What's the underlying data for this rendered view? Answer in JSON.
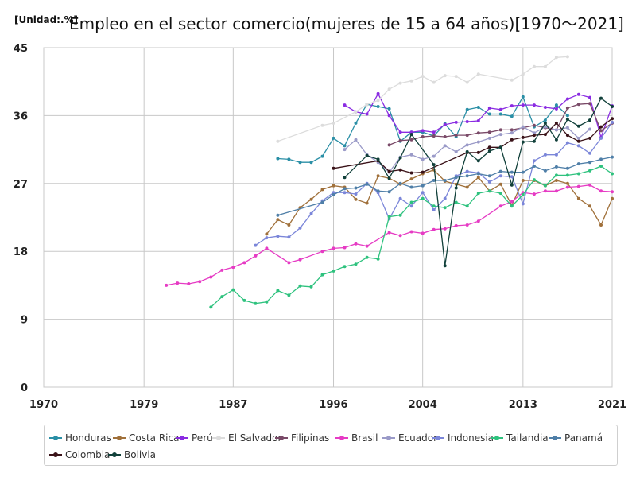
{
  "chart_data": {
    "type": "line",
    "unit_label": "[Unidad:.%]",
    "title": "Empleo en el sector comercio(mujeres de 15 a 64 años)[1970～2021]",
    "xlim": [
      1970,
      2021
    ],
    "ylim": [
      0,
      45
    ],
    "x_ticks": [
      "1970",
      "1979",
      "1987",
      "1996",
      "2004",
      "2013",
      "2021"
    ],
    "y_ticks": [
      "0",
      "9",
      "18",
      "27",
      "36",
      "45"
    ],
    "grid": true,
    "legend_position": "bottom",
    "series": [
      {
        "name": "Honduras",
        "color": "#2a8fa6",
        "x": [
          1991,
          1992,
          1993,
          1994,
          1995,
          1996,
          1997,
          1998,
          1999,
          2000,
          2001,
          2002,
          2003,
          2004,
          2005,
          2006,
          2007,
          2008,
          2009,
          2010,
          2011,
          2012,
          2013,
          2014,
          2015,
          2016,
          2017
        ],
        "y": [
          30.3,
          30.2,
          29.8,
          29.8,
          30.6,
          33.0,
          32.0,
          35.0,
          37.5,
          37.2,
          36.9,
          32.6,
          33.8,
          33.8,
          33.3,
          34.9,
          33.2,
          36.8,
          37.1,
          36.2,
          36.2,
          35.9,
          38.5,
          34.5,
          35.4,
          37.4,
          36.0
        ]
      },
      {
        "name": "Costa Rica",
        "color": "#a0703a",
        "x": [
          1990,
          1991,
          1992,
          1993,
          1994,
          1995,
          1996,
          1997,
          1998,
          1999,
          2000,
          2001,
          2002,
          2003,
          2004,
          2005,
          2006,
          2007,
          2008,
          2009,
          2010,
          2011,
          2012,
          2013,
          2014,
          2015,
          2016,
          2017,
          2018,
          2019,
          2020,
          2021
        ],
        "y": [
          20.3,
          22.2,
          21.5,
          23.8,
          24.9,
          26.2,
          26.7,
          26.5,
          24.9,
          24.4,
          28.0,
          27.7,
          26.9,
          27.6,
          28.3,
          28.8,
          27.3,
          26.9,
          26.5,
          27.8,
          26.0,
          26.9,
          24.1,
          27.4,
          27.4,
          26.7,
          27.4,
          27.0,
          25.0,
          24.0,
          21.5,
          25.0
        ]
      },
      {
        "name": "Perú",
        "color": "#8a2be2",
        "x": [
          1997,
          1998,
          1999,
          2000,
          2001,
          2002,
          2003,
          2004,
          2005,
          2006,
          2007,
          2008,
          2009,
          2010,
          2011,
          2012,
          2013,
          2014,
          2015,
          2016,
          2017,
          2018,
          2019,
          2020,
          2021
        ],
        "y": [
          37.4,
          36.5,
          36.2,
          38.9,
          36.0,
          33.8,
          33.8,
          34.0,
          33.8,
          34.8,
          35.1,
          35.2,
          35.3,
          37.0,
          36.8,
          37.3,
          37.4,
          37.4,
          37.1,
          36.9,
          38.2,
          38.8,
          38.4,
          33.1,
          37.3
        ]
      },
      {
        "name": "El Salvador",
        "color": "#dcdcdc",
        "x": [
          1991,
          1995,
          1996,
          1998,
          1999,
          2000,
          2001,
          2002,
          2003,
          2004,
          2005,
          2006,
          2007,
          2008,
          2009,
          2012,
          2013,
          2014,
          2015,
          2016,
          2017
        ],
        "y": [
          32.6,
          34.7,
          35.0,
          36.5,
          37.5,
          38.0,
          39.5,
          40.3,
          40.6,
          41.2,
          40.4,
          41.3,
          41.2,
          40.4,
          41.5,
          40.7,
          41.5,
          42.5,
          42.5,
          43.7,
          43.8
        ]
      },
      {
        "name": "Filipinas",
        "color": "#7a4a68",
        "x": [
          2001,
          2002,
          2003,
          2004,
          2005,
          2006,
          2007,
          2008,
          2009,
          2010,
          2011,
          2012,
          2013,
          2014,
          2015,
          2016,
          2017,
          2018,
          2019,
          2020,
          2021
        ],
        "y": [
          32.1,
          32.7,
          32.8,
          33.2,
          33.3,
          33.2,
          33.4,
          33.4,
          33.7,
          33.8,
          34.1,
          34.1,
          34.4,
          34.7,
          34.4,
          34.1,
          37.0,
          37.5,
          37.6,
          34.0,
          35.0
        ]
      },
      {
        "name": "Brasil",
        "color": "#e63bc4",
        "x": [
          1981,
          1982,
          1983,
          1984,
          1985,
          1986,
          1987,
          1988,
          1989,
          1990,
          1992,
          1993,
          1995,
          1996,
          1997,
          1998,
          1999,
          2001,
          2002,
          2003,
          2004,
          2005,
          2006,
          2007,
          2008,
          2009,
          2011,
          2012,
          2013,
          2014,
          2015,
          2016,
          2017,
          2018,
          2019,
          2020,
          2021
        ],
        "y": [
          13.5,
          13.8,
          13.7,
          14.0,
          14.6,
          15.5,
          15.9,
          16.5,
          17.4,
          18.4,
          16.5,
          16.9,
          18.0,
          18.4,
          18.5,
          19.0,
          18.7,
          20.5,
          20.1,
          20.6,
          20.4,
          20.9,
          21.0,
          21.4,
          21.5,
          22.0,
          24.0,
          24.6,
          25.8,
          25.6,
          26.0,
          26.0,
          26.5,
          26.6,
          26.8,
          26.0,
          25.9
        ]
      },
      {
        "name": "Ecuador",
        "color": "#9a9ac8",
        "x": [
          1997,
          1998,
          1999,
          2000,
          2001,
          2002,
          2003,
          2004,
          2005,
          2006,
          2007,
          2008,
          2009,
          2010,
          2011,
          2012,
          2013,
          2014,
          2015,
          2016,
          2017,
          2018,
          2019
        ],
        "y": [
          31.5,
          32.8,
          30.8,
          29.8,
          28.5,
          30.5,
          30.8,
          30.2,
          30.6,
          32.0,
          31.2,
          32.1,
          32.5,
          33.0,
          33.5,
          33.7,
          34.5,
          33.7,
          34.5,
          34.1,
          34.4,
          33.0,
          34.2
        ]
      },
      {
        "name": "Indonesia",
        "color": "#7b86d9",
        "x": [
          1989,
          1990,
          1991,
          1992,
          1993,
          1994,
          1995,
          1996,
          1997,
          1998,
          1999,
          2000,
          2001,
          2002,
          2003,
          2004,
          2005,
          2006,
          2007,
          2008,
          2009,
          2010,
          2011,
          2012,
          2013,
          2014,
          2015,
          2016,
          2017,
          2018,
          2019,
          2020,
          2021
        ],
        "y": [
          18.8,
          19.8,
          20.0,
          19.9,
          21.1,
          23.0,
          24.7,
          25.8,
          25.8,
          25.6,
          27.0,
          25.8,
          22.3,
          25.0,
          24.0,
          25.8,
          23.5,
          25.0,
          28.0,
          28.6,
          28.4,
          27.2,
          28.0,
          27.9,
          24.3,
          30.0,
          30.8,
          30.8,
          32.4,
          32.0,
          31.0,
          33.0,
          35.1
        ]
      },
      {
        "name": "Tailandia",
        "color": "#2ec27e",
        "x": [
          1985,
          1986,
          1987,
          1988,
          1989,
          1990,
          1991,
          1992,
          1993,
          1994,
          1995,
          1996,
          1997,
          1998,
          1999,
          2000,
          2001,
          2002,
          2003,
          2004,
          2005,
          2006,
          2007,
          2008,
          2009,
          2010,
          2011,
          2012,
          2013,
          2014,
          2015,
          2016,
          2017,
          2018,
          2019,
          2020,
          2021
        ],
        "y": [
          10.6,
          12.0,
          12.9,
          11.5,
          11.1,
          11.3,
          12.8,
          12.2,
          13.4,
          13.3,
          14.9,
          15.4,
          16.0,
          16.3,
          17.2,
          17.0,
          22.6,
          22.8,
          24.5,
          25.0,
          24.0,
          23.8,
          24.5,
          24.0,
          25.7,
          26.0,
          25.7,
          24.0,
          25.5,
          27.5,
          26.7,
          28.1,
          28.1,
          28.3,
          28.7,
          29.3,
          28.3
        ]
      },
      {
        "name": "Panamá",
        "color": "#4f7fa8",
        "x": [
          1991,
          1995,
          1996,
          1997,
          1998,
          1999,
          2000,
          2001,
          2002,
          2003,
          2004,
          2005,
          2006,
          2007,
          2008,
          2009,
          2010,
          2011,
          2012,
          2013,
          2014,
          2015,
          2016,
          2017,
          2018,
          2019,
          2020,
          2021
        ],
        "y": [
          22.8,
          24.5,
          25.5,
          26.3,
          26.4,
          26.9,
          26.0,
          25.9,
          27.0,
          26.5,
          26.7,
          27.4,
          27.4,
          27.8,
          28.0,
          28.3,
          28.0,
          28.6,
          28.5,
          28.5,
          29.3,
          28.7,
          29.2,
          29.0,
          29.6,
          29.8,
          30.2,
          30.5
        ]
      },
      {
        "name": "Colombia",
        "color": "#3a1218",
        "x": [
          1996,
          2000,
          2001,
          2002,
          2003,
          2004,
          2008,
          2009,
          2010,
          2011,
          2012,
          2013,
          2014,
          2015,
          2016,
          2017,
          2018,
          2019,
          2020,
          2021
        ],
        "y": [
          29.0,
          30.0,
          28.6,
          28.8,
          28.4,
          28.5,
          31.1,
          31.1,
          31.8,
          31.8,
          32.8,
          33.1,
          33.4,
          33.5,
          35.0,
          33.4,
          32.6,
          33.0,
          34.5,
          35.6
        ]
      },
      {
        "name": "Bolivia",
        "color": "#11403a",
        "x": [
          1997,
          1999,
          2000,
          2001,
          2002,
          2003,
          2005,
          2006,
          2007,
          2008,
          2009,
          2010,
          2011,
          2012,
          2013,
          2014,
          2015,
          2016,
          2017,
          2018,
          2019,
          2020,
          2021
        ],
        "y": [
          27.8,
          30.7,
          30.2,
          27.7,
          30.4,
          33.5,
          29.5,
          16.1,
          26.4,
          31.2,
          30.0,
          31.3,
          31.8,
          26.8,
          32.5,
          32.6,
          35.0,
          32.8,
          35.5,
          34.6,
          35.4,
          38.3,
          37.2
        ]
      }
    ]
  }
}
